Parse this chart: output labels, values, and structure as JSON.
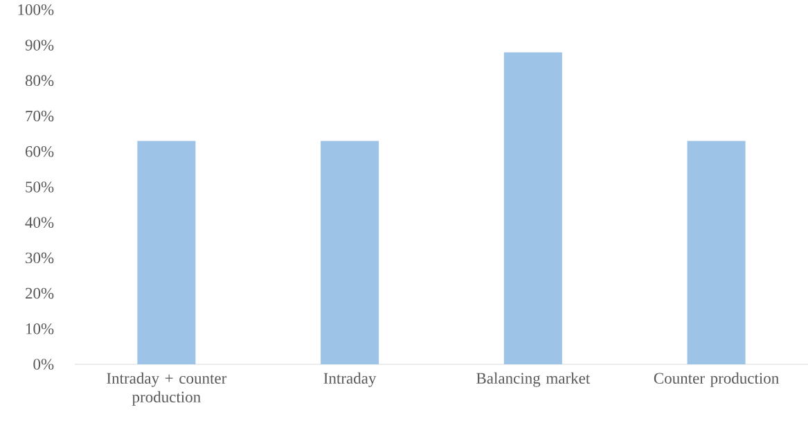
{
  "chart_data": {
    "type": "bar",
    "categories": [
      "Intraday + counter production",
      "Intraday",
      "Balancing market",
      "Counter production"
    ],
    "values": [
      63,
      63,
      88,
      63
    ],
    "color": "#9dc3e6",
    "ylim": [
      0,
      100
    ],
    "yticks": [
      {
        "value": 0,
        "label": "0%"
      },
      {
        "value": 10,
        "label": "10%"
      },
      {
        "value": 20,
        "label": "20%"
      },
      {
        "value": 30,
        "label": "30%"
      },
      {
        "value": 40,
        "label": "40%"
      },
      {
        "value": 50,
        "label": "50%"
      },
      {
        "value": 60,
        "label": "60%"
      },
      {
        "value": 70,
        "label": "70%"
      },
      {
        "value": 80,
        "label": "80%"
      },
      {
        "value": 90,
        "label": "90%"
      },
      {
        "value": 100,
        "label": "100%"
      }
    ]
  }
}
